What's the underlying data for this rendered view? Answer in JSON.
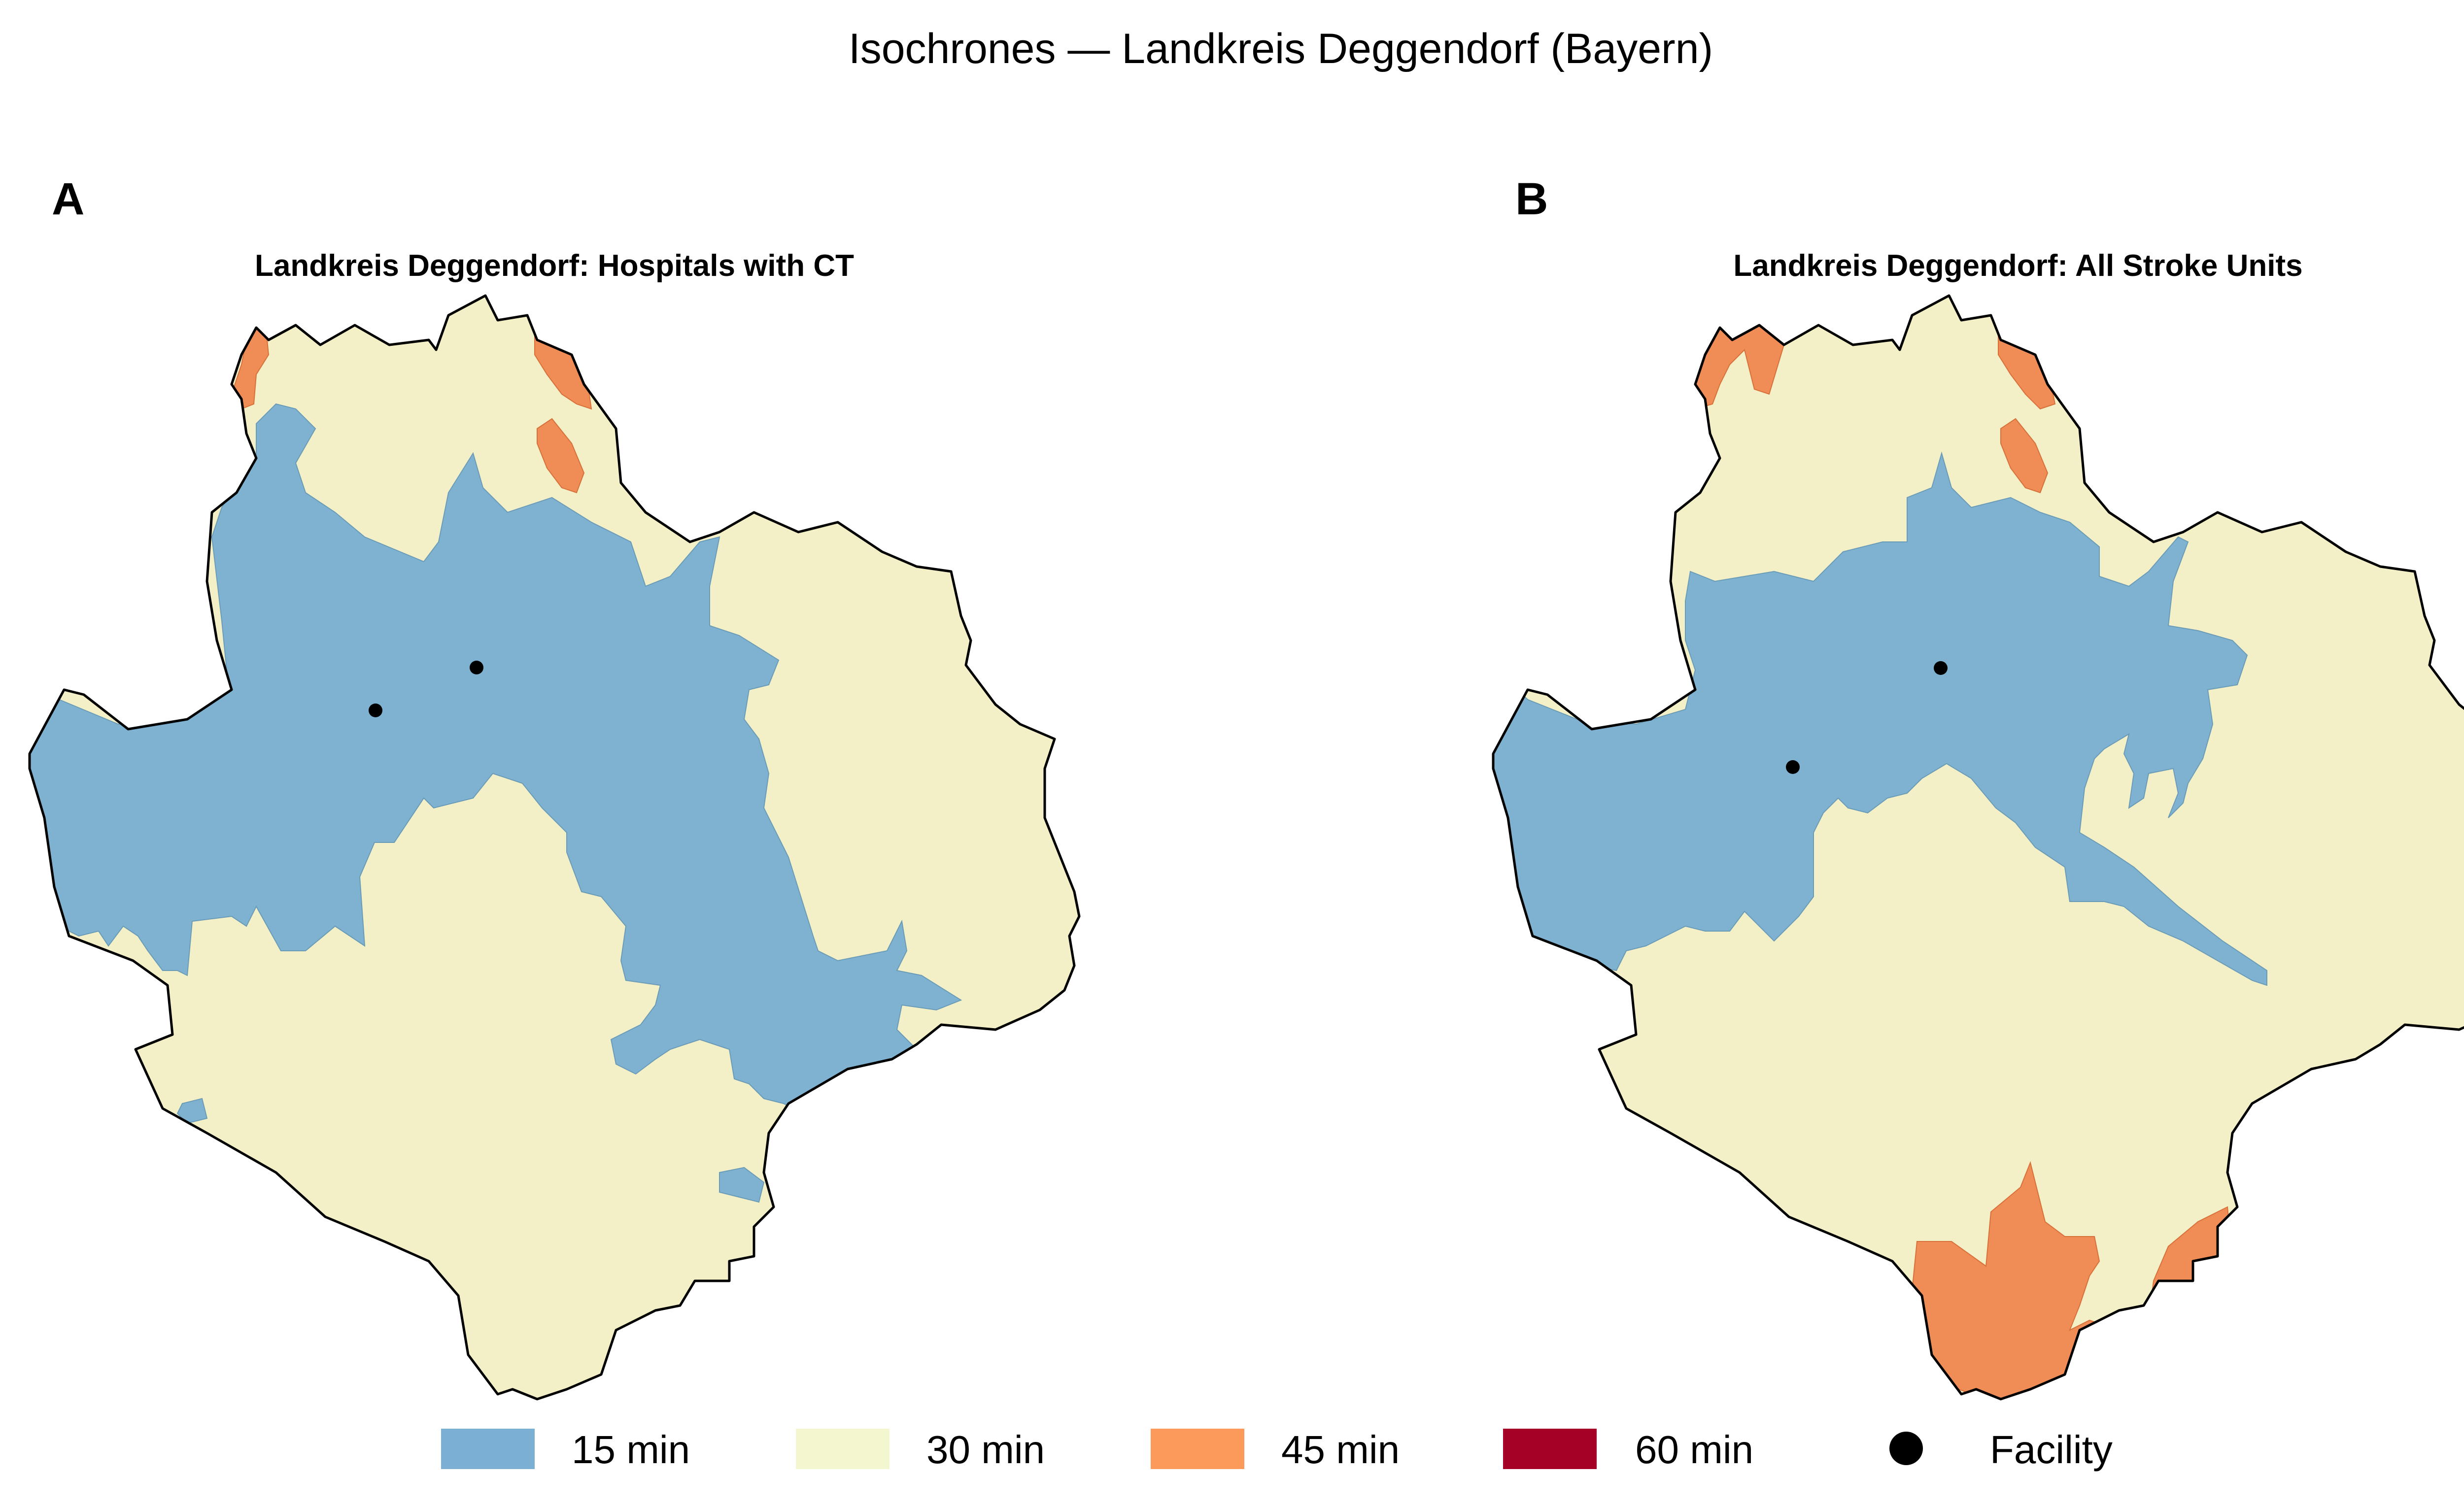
{
  "figure_title": "Isochrones — Landkreis Deggendorf (Bayern)",
  "colors": {
    "15": "#7fb2d1",
    "30": "#f3efc6",
    "45": "#f08c55",
    "60": "#a50026",
    "facility": "#000000",
    "outline": "#000000"
  },
  "panels": [
    {
      "label": "A",
      "title": "Landkreis Deggendorf: Hospitals with CT",
      "facilities_count": 2
    },
    {
      "label": "B",
      "title": "Landkreis Deggendorf: All Stroke Units",
      "facilities_count": 2
    }
  ],
  "legend": {
    "items": [
      {
        "label": "15 min",
        "color": "#7bafd4"
      },
      {
        "label": "30 min",
        "color": "#f4f6d0"
      },
      {
        "label": "45 min",
        "color": "#fb9a5b"
      },
      {
        "label": "60 min",
        "color": "#a50026"
      },
      {
        "label": "Facility",
        "marker": "circle",
        "color": "#000000"
      }
    ]
  }
}
